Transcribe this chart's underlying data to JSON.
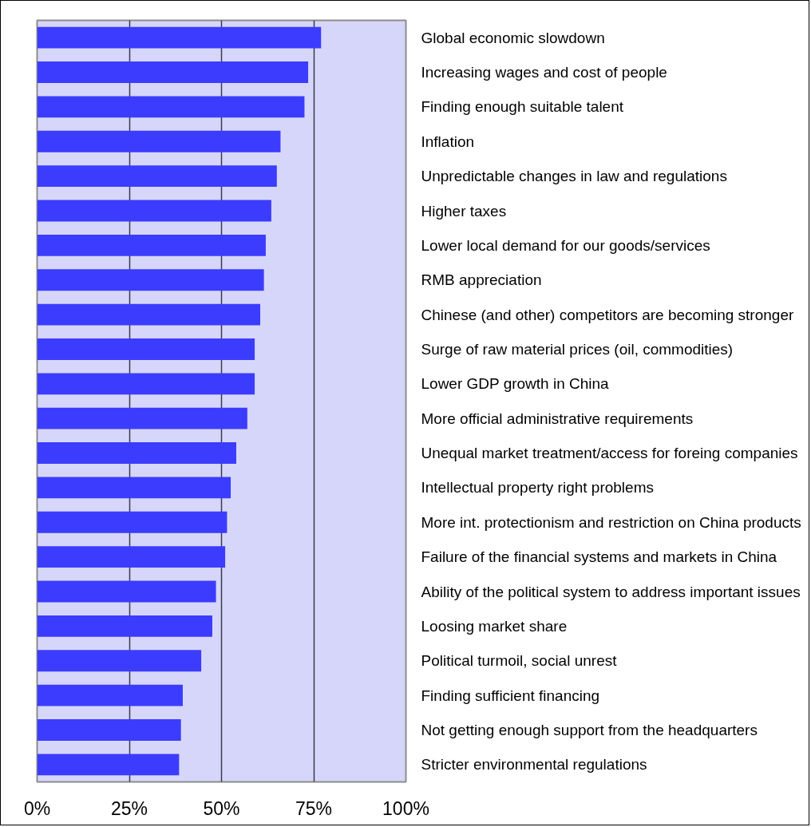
{
  "chart_data": {
    "type": "bar",
    "orientation": "horizontal",
    "categories": [
      "Global economic slowdown",
      "Increasing wages and cost of people",
      "Finding enough suitable talent",
      "Inflation",
      "Unpredictable changes in law and regulations",
      "Higher taxes",
      "Lower local demand for our goods/services",
      "RMB appreciation",
      "Chinese (and other) competitors are becoming stronger",
      "Surge of raw material prices (oil, commodities)",
      "Lower GDP growth in China",
      "More official administrative requirements",
      "Unequal market treatment/access for foreing companies",
      "Intellectual property right problems",
      "More int. protectionism and restriction on China products",
      "Failure of the financial systems and markets in China",
      "Ability of the political system to address important issues",
      "Loosing market share",
      "Political turmoil, social unrest",
      "Finding sufficient financing",
      "Not getting enough support from the headquarters",
      "Stricter environmental regulations"
    ],
    "values": [
      77,
      73.5,
      72.5,
      66,
      65,
      63.5,
      62,
      61.5,
      60.5,
      59,
      59,
      57,
      54,
      52.5,
      51.5,
      51,
      48.5,
      47.5,
      44.5,
      39.5,
      39,
      38.5
    ],
    "color": "#3c3cff",
    "xlim": [
      0,
      100
    ],
    "xticks": [
      {
        "value": 0,
        "label": "0%"
      },
      {
        "value": 25,
        "label": "25%"
      },
      {
        "value": 50,
        "label": "50%"
      },
      {
        "value": 75,
        "label": "75%"
      },
      {
        "value": 100,
        "label": "100%"
      }
    ],
    "grid": "x"
  }
}
